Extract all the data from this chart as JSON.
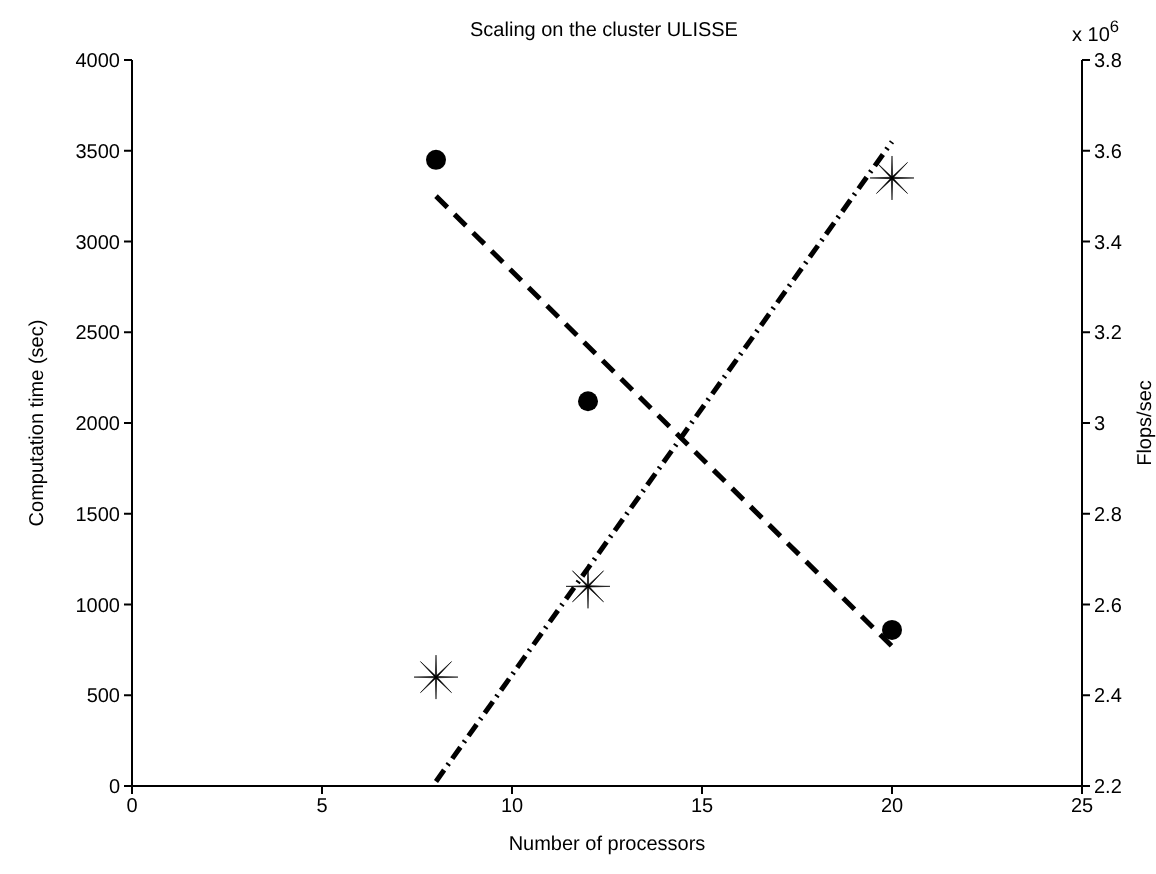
{
  "chart_data": {
    "type": "scatter",
    "title": "Scaling on the cluster ULISSE",
    "xlabel": "Number of processors",
    "ylabel": "Computation time (sec)",
    "y2label": "Flops/sec",
    "annotations": [
      "x 10$^{6}$"
    ],
    "xlim": [
      0,
      25
    ],
    "xticks": [
      0,
      5,
      10,
      15,
      20,
      25
    ],
    "ylim": [
      0,
      4000
    ],
    "yticks": [
      0,
      500,
      1000,
      1500,
      2000,
      2500,
      3000,
      3500,
      4000
    ],
    "y2lim": [
      2.2,
      3.8
    ],
    "y2ticks": [
      2.2,
      2.4,
      2.6,
      2.8,
      3,
      3.2,
      3.4,
      3.6,
      3.8
    ],
    "grid": false,
    "legend": false,
    "series": [
      {
        "x": [
          8,
          12,
          20
        ],
        "values": [
          3450,
          2120,
          860
        ],
        "color": "#000000",
        "marker": "circle"
      },
      {
        "type": "line",
        "x": [
          8,
          20
        ],
        "values": [
          3250,
          770
        ],
        "color": "#000000",
        "marker": "none",
        "line_style": "dashed"
      },
      {
        "axis": "y2",
        "x": [
          8,
          12,
          20
        ],
        "values": [
          2.44,
          2.64,
          3.54
        ],
        "color": "#000000",
        "marker": "star"
      },
      {
        "type": "line",
        "axis": "y2",
        "x": [
          8,
          20
        ],
        "values": [
          2.21,
          3.62
        ],
        "color": "#000000",
        "marker": "none",
        "line_style": "dotted"
      }
    ]
  }
}
